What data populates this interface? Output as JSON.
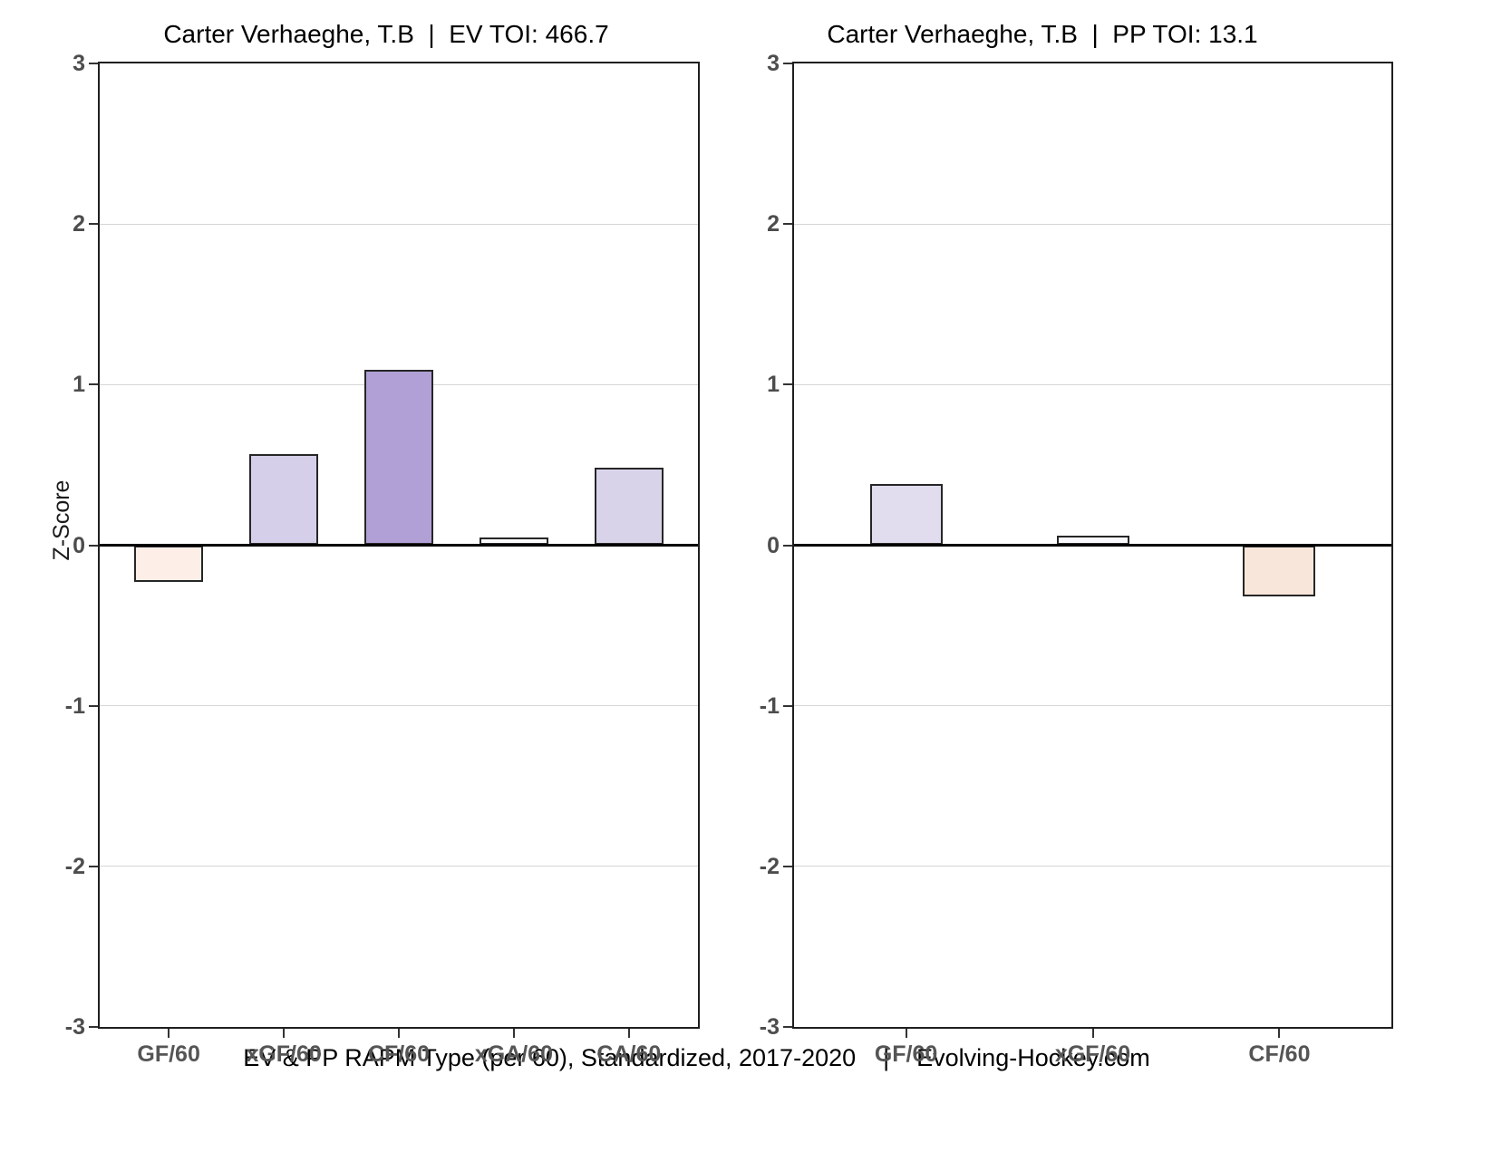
{
  "page": {
    "background": "#ffffff"
  },
  "ylabel": "Z-Score",
  "caption": "EV & PP RAPM Type (per 60), Standardized, 2017-2020    |    Evolving-Hockey.com",
  "colors": {
    "grid": "#d6d6d6",
    "zero_line": "#000000",
    "panel_border": "#1f1f1f",
    "bar_border": "#262626",
    "y_tick_text": "#4d4d4d",
    "x_tick_text": "#555555",
    "title_text": "#000000"
  },
  "chart_data": [
    {
      "type": "bar",
      "title": "Carter Verhaeghe, T.B  |  EV TOI: 466.7",
      "categories": [
        "GF/60",
        "xGF/60",
        "CF/60",
        "xGA/60",
        "CA/60"
      ],
      "values": [
        -0.23,
        0.57,
        1.09,
        0.05,
        0.48
      ],
      "bar_colors": [
        "#fdeee8",
        "#d6cfe9",
        "#b1a0d5",
        "#faf9fd",
        "#d9d3ea"
      ],
      "xlabel": "",
      "ylabel": "Z-Score",
      "ylim": [
        -3,
        3
      ],
      "yticks": [
        3,
        2,
        1,
        0,
        -1,
        -2,
        -3
      ],
      "grid": "horizontal-major",
      "zero_line": true,
      "legend": "none"
    },
    {
      "type": "bar",
      "title": "Carter Verhaeghe, T.B  |  PP TOI: 13.1",
      "categories": [
        "GF/60",
        "xGF/60",
        "CF/60"
      ],
      "values": [
        0.38,
        0.06,
        -0.32
      ],
      "bar_colors": [
        "#e2dcef",
        "#f9f8fc",
        "#f9e6da"
      ],
      "xlabel": "",
      "ylabel": "Z-Score",
      "ylim": [
        -3,
        3
      ],
      "yticks": [
        3,
        2,
        1,
        0,
        -1,
        -2,
        -3
      ],
      "grid": "horizontal-major",
      "zero_line": true,
      "legend": "none"
    }
  ]
}
